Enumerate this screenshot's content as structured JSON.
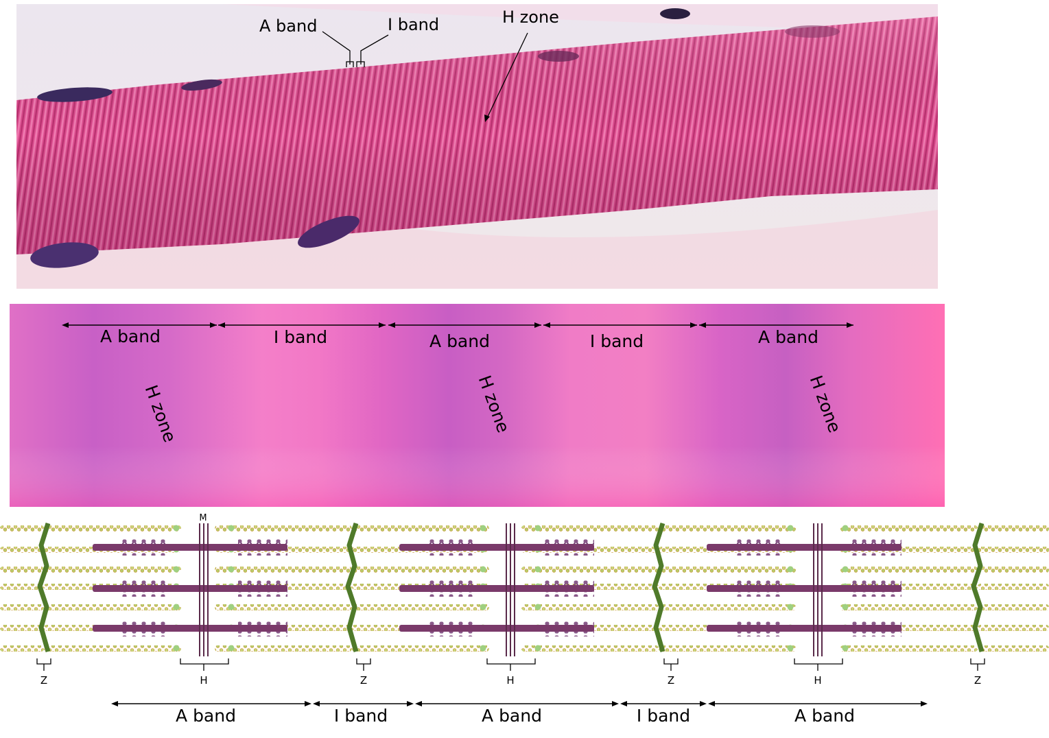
{
  "micrograph": {
    "labels": {
      "a_band": "A band",
      "i_band": "I band",
      "h_zone": "H zone"
    }
  },
  "magnified": {
    "band_labels": [
      "A band",
      "I band",
      "A band",
      "I band",
      "A band"
    ],
    "h_zone_labels": [
      "H zone",
      "H zone",
      "H zone"
    ]
  },
  "schematic": {
    "m_label": "M",
    "z_labels": [
      "Z",
      "Z",
      "Z",
      "Z"
    ],
    "h_labels": [
      "H",
      "H",
      "H"
    ],
    "band_labels": [
      "A band",
      "I band",
      "A band",
      "I band",
      "A band"
    ]
  },
  "colors": {
    "tissue_pink": "#e0508f",
    "nucleus": "#3a2a6a",
    "thin_filament": "#c8d87a",
    "z_disc": "#4f7a2a",
    "thick_filament": "#7a3a6a"
  }
}
